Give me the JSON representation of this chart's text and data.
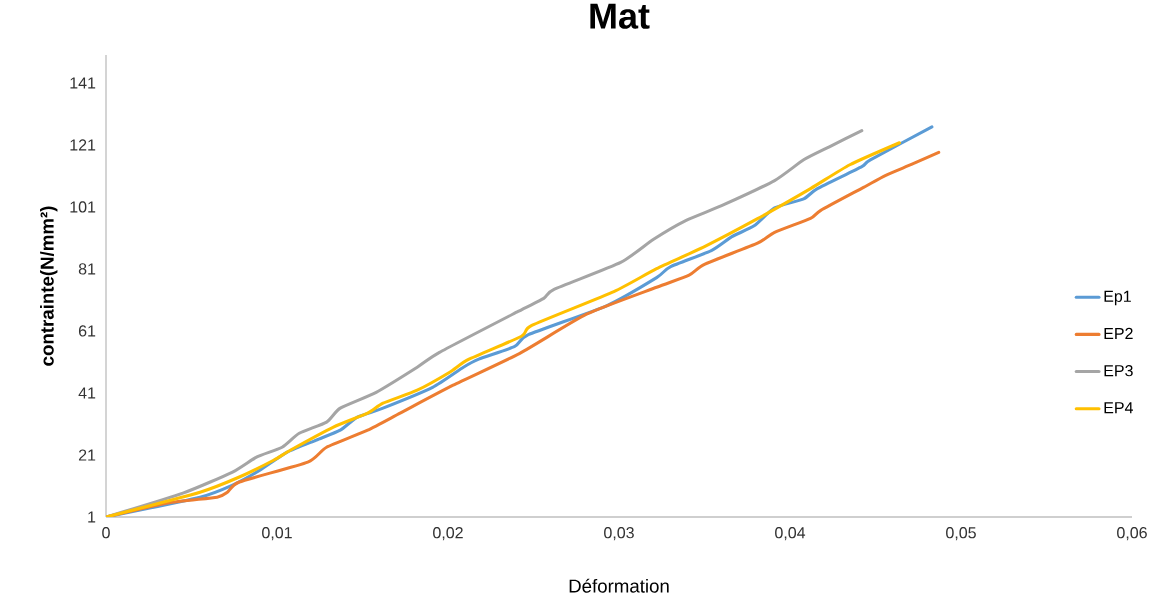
{
  "chart_data": {
    "type": "line",
    "title": "Mat",
    "xlabel": "Déformation",
    "ylabel": "contrainte(N/mm²)",
    "xlim": [
      0,
      0.06
    ],
    "ylim": [
      1,
      150
    ],
    "xticks": [
      0,
      {
        "value": 0.01,
        "label": "0,01"
      },
      {
        "value": 0.02,
        "label": "0,02"
      },
      {
        "value": 0.03,
        "label": "0,03"
      },
      {
        "value": 0.04,
        "label": "0,04"
      },
      {
        "value": 0.05,
        "label": "0,05"
      },
      {
        "value": 0.06,
        "label": "0,06"
      }
    ],
    "yticks": [
      1,
      21,
      41,
      61,
      81,
      101,
      121,
      141
    ],
    "grid": false,
    "legend": "right",
    "marker": "none",
    "line_style": "solid",
    "series": [
      {
        "name": "Ep1",
        "color": "#5b9bd5",
        "x": [
          0,
          0.0055,
          0.0074,
          0.009,
          0.0106,
          0.0123,
          0.0137,
          0.0147,
          0.0162,
          0.0191,
          0.0209,
          0.0218,
          0.0239,
          0.0247,
          0.0293,
          0.0322,
          0.033,
          0.0354,
          0.0366,
          0.0379,
          0.0391,
          0.0408,
          0.0416,
          0.0442,
          0.0447,
          0.0483
        ],
        "values": [
          1,
          7.4,
          11.3,
          16.1,
          21.9,
          25.8,
          29,
          33.2,
          36.1,
          42.8,
          49.3,
          51.9,
          56,
          59.8,
          69.2,
          78.2,
          81.7,
          86.9,
          91.4,
          94.9,
          100.7,
          103.6,
          106.9,
          114,
          116.2,
          126.8
        ]
      },
      {
        "name": "EP2",
        "color": "#ed7d31",
        "x": [
          0,
          0.0036,
          0.0065,
          0.0071,
          0.0078,
          0.0118,
          0.0129,
          0.0153,
          0.0172,
          0.0203,
          0.0242,
          0.0281,
          0.0322,
          0.0341,
          0.035,
          0.0381,
          0.0391,
          0.0412,
          0.0418,
          0.0443,
          0.0456,
          0.0471,
          0.0487
        ],
        "values": [
          1,
          5.5,
          7.4,
          9,
          12.3,
          18.7,
          23.5,
          29,
          34.5,
          43.5,
          53.8,
          66.4,
          75.1,
          79,
          82.5,
          89.3,
          92.8,
          97.3,
          99.9,
          107.3,
          111.2,
          114.7,
          118.6
        ]
      },
      {
        "name": "EP3",
        "color": "#a5a5a5",
        "x": [
          0,
          0.0045,
          0.0074,
          0.0088,
          0.0103,
          0.0113,
          0.0129,
          0.0137,
          0.0158,
          0.0182,
          0.0195,
          0.0241,
          0.0256,
          0.0262,
          0.0301,
          0.032,
          0.0339,
          0.036,
          0.0391,
          0.0408,
          0.0423,
          0.0442
        ],
        "values": [
          1,
          8.7,
          15.5,
          20.3,
          23.5,
          28,
          31.6,
          36.1,
          41.2,
          49.3,
          54.1,
          67.3,
          71.5,
          74.4,
          83.1,
          90.5,
          96.6,
          101.4,
          109.5,
          116.2,
          120.4,
          125.6
        ]
      },
      {
        "name": "EP4",
        "color": "#ffc000",
        "x": [
          0,
          0.0055,
          0.0078,
          0.0098,
          0.0108,
          0.0133,
          0.0153,
          0.0162,
          0.0182,
          0.0201,
          0.0212,
          0.0243,
          0.0249,
          0.0297,
          0.0322,
          0.035,
          0.0381,
          0.0412,
          0.0435,
          0.0464
        ],
        "values": [
          1,
          9,
          13.9,
          19.3,
          22.6,
          30,
          34.5,
          37.7,
          41.9,
          47.7,
          51.8,
          59.3,
          62.8,
          73.7,
          81.1,
          88.2,
          97.2,
          106.9,
          114.6,
          121.7
        ]
      }
    ]
  }
}
